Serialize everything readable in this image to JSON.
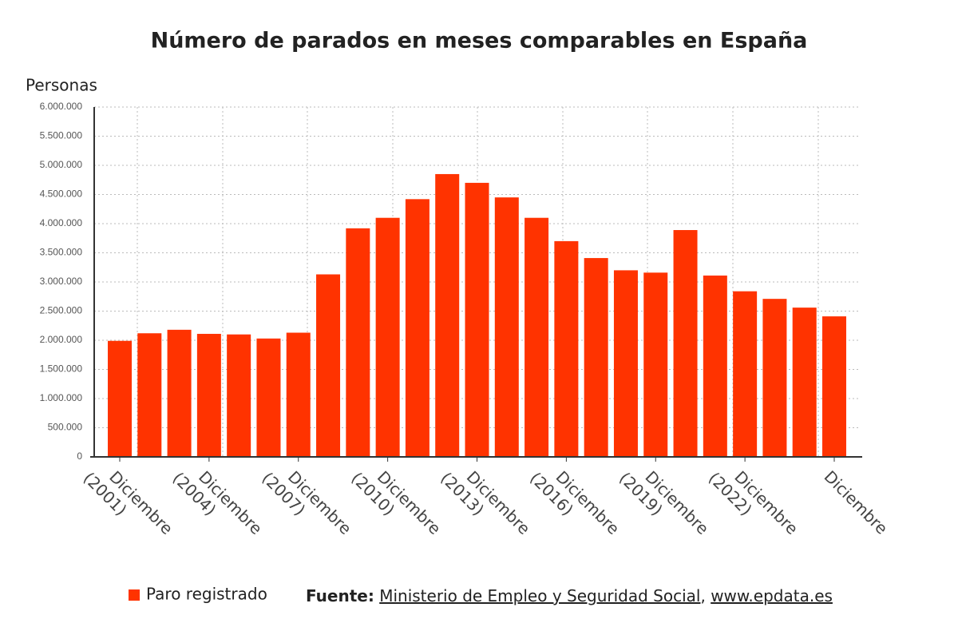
{
  "chart_data": {
    "type": "bar",
    "title": "Número de parados en meses comparables en España",
    "y_label": "Personas",
    "categories": [
      "Diciembre (2001)",
      null,
      null,
      "Diciembre (2004)",
      null,
      null,
      "Diciembre (2007)",
      null,
      null,
      "Diciembre (2010)",
      null,
      null,
      "Diciembre (2013)",
      null,
      null,
      "Diciembre (2016)",
      null,
      null,
      "Diciembre (2019)",
      null,
      null,
      "Diciembre (2022)",
      null,
      null,
      "Diciembre"
    ],
    "series": [
      {
        "name": "Paro registrado",
        "color": "#ff3300",
        "values": [
          1990000,
          2120000,
          2180000,
          2110000,
          2100000,
          2030000,
          2130000,
          3130000,
          3920000,
          4100000,
          4420000,
          4850000,
          4700000,
          4450000,
          4100000,
          3700000,
          3410000,
          3200000,
          3160000,
          3890000,
          3110000,
          2840000,
          2710000,
          2560000,
          2410000
        ]
      }
    ],
    "ylim": [
      0,
      6000000
    ],
    "yticks": [
      0,
      {
        "value": 500000,
        "label": "500.000"
      },
      {
        "value": 1000000,
        "label": "1.000.000"
      },
      {
        "value": 1500000,
        "label": "1.500.000"
      },
      {
        "value": 2000000,
        "label": "2.000.000"
      },
      {
        "value": 2500000,
        "label": "2.500.000"
      },
      {
        "value": 3000000,
        "label": "3.000.000"
      },
      {
        "value": 3500000,
        "label": "3.500.000"
      },
      {
        "value": 4000000,
        "label": "4.000.000"
      },
      {
        "value": 4500000,
        "label": "4.500.000"
      },
      {
        "value": 5000000,
        "label": "5.000.000"
      },
      {
        "value": 5500000,
        "label": "5.500.000"
      },
      {
        "value": 6000000,
        "label": "6.000.000"
      }
    ],
    "grid": true,
    "legend": "bottom-left",
    "source_label": "Fuente:",
    "source_parts": [
      "Ministerio de Empleo y Seguridad Social",
      "www.epdata.es"
    ],
    "source_separator": ","
  }
}
